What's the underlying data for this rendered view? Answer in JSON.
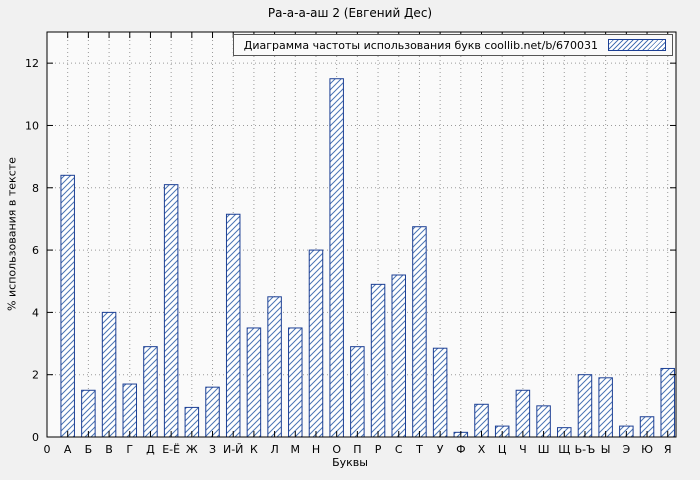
{
  "colors": {
    "bar_border": "#1c3f94",
    "hatch": "#4a74b4",
    "axis": "#000000",
    "grid": "#9a9a9a",
    "background": "#f1f1f1",
    "plot_bg": "#fafafa"
  },
  "chart_data": {
    "type": "bar",
    "title": "Ра-а-а-аш 2 (Евгений Дес)",
    "legend": "Диаграмма частоты использования букв coollib.net/b/670031",
    "xlabel": "Буквы",
    "ylabel": "% использования в тексте",
    "origin_tick_label": "0",
    "categories": [
      "А",
      "Б",
      "В",
      "Г",
      "Д",
      "Е-Ё",
      "Ж",
      "З",
      "И-Й",
      "К",
      "Л",
      "М",
      "Н",
      "О",
      "П",
      "Р",
      "С",
      "Т",
      "У",
      "Ф",
      "Х",
      "Ц",
      "Ч",
      "Ш",
      "Щ",
      "Ь-Ъ",
      "Ы",
      "Э",
      "Ю",
      "Я"
    ],
    "values": [
      8.4,
      1.5,
      4.0,
      1.7,
      2.9,
      8.1,
      0.95,
      1.6,
      7.15,
      3.5,
      4.5,
      3.5,
      6.0,
      11.5,
      2.9,
      4.9,
      5.2,
      6.75,
      2.85,
      0.15,
      1.05,
      0.35,
      1.5,
      1.0,
      0.3,
      2.0,
      1.9,
      0.35,
      0.65,
      2.2
    ],
    "ylim": [
      0,
      13
    ],
    "yticks": [
      0,
      2,
      4,
      6,
      8,
      10,
      12
    ],
    "grid": true,
    "legend_position": "top-right"
  }
}
